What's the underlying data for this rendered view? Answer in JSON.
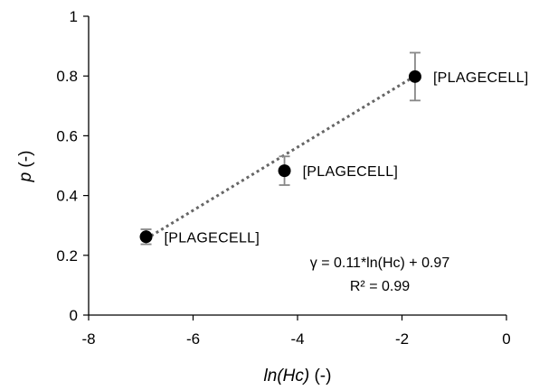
{
  "chart_data": {
    "type": "scatter",
    "title": "",
    "xlabel": "ln(Hc)",
    "xlabel_unit": " (-)",
    "ylabel": "p",
    "ylabel_unit": " (-)",
    "xlim": [
      -8,
      0
    ],
    "ylim": [
      0,
      1
    ],
    "x_ticks": [
      -8,
      -6,
      -4,
      -2,
      0
    ],
    "y_ticks": [
      0,
      0.2,
      0.4,
      0.6,
      0.8,
      1
    ],
    "grid": false,
    "points": [
      {
        "x": -6.9,
        "y": 0.262,
        "err": 0.025,
        "label": "[PLAGECELL]"
      },
      {
        "x": -4.25,
        "y": 0.483,
        "err": 0.048,
        "label": "[PLAGECELL]"
      },
      {
        "x": -1.75,
        "y": 0.798,
        "err": 0.08,
        "label": "[PLAGECELL]"
      }
    ],
    "trendline": {
      "style": "dotted",
      "x_start": -6.9,
      "x_end": -1.75,
      "y_start": 0.255,
      "y_end": 0.8
    },
    "annotations": {
      "equation": "γ = 0.11*ln(Hc) + 0.97",
      "r_squared": "R² = 0.99"
    }
  }
}
